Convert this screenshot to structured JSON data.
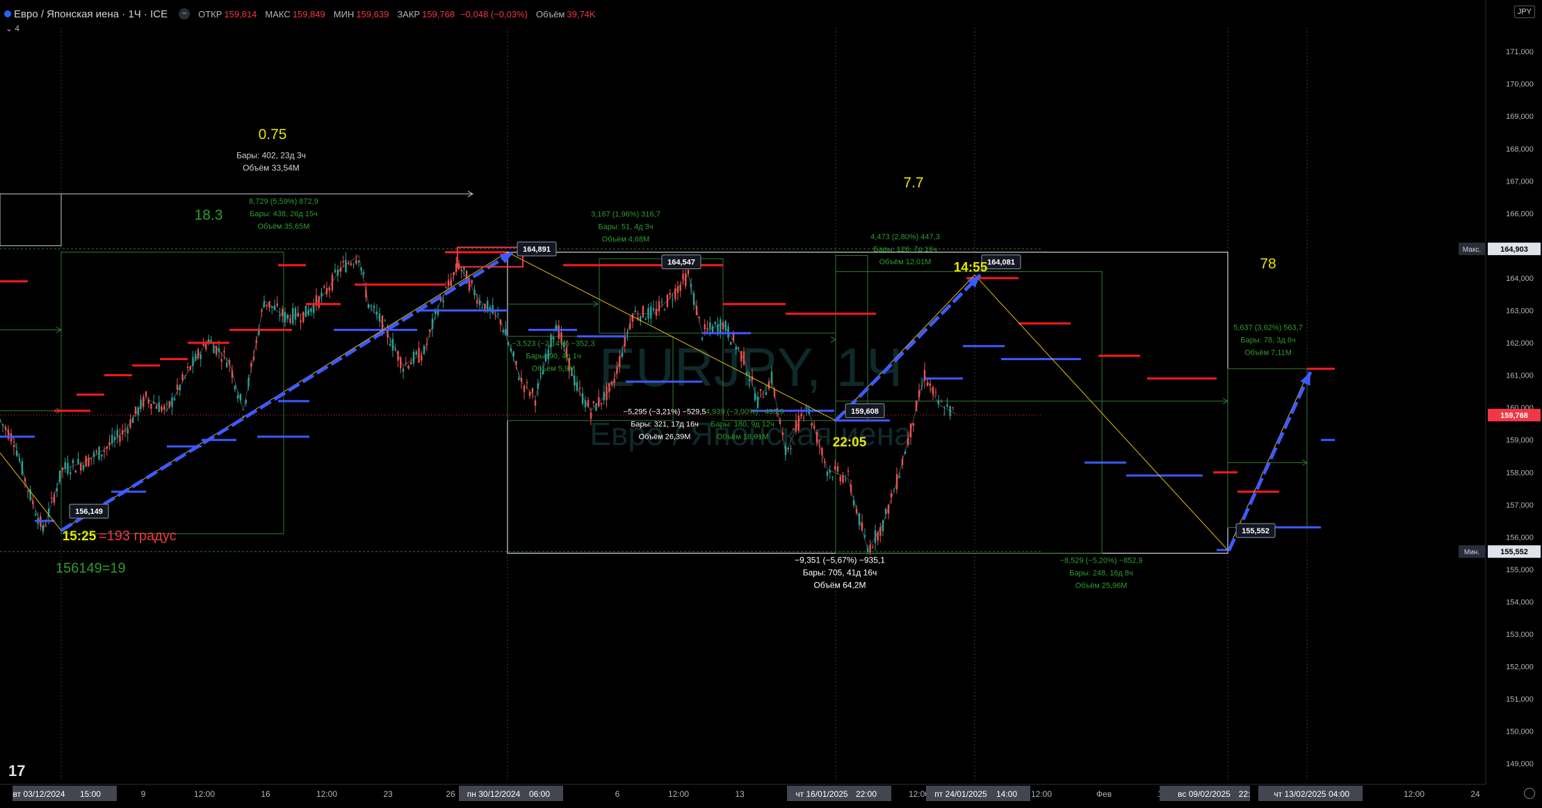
{
  "header": {
    "title": "Евро / Японская иена · 1Ч · ICE",
    "open_label": "ОТКР",
    "open": "159,814",
    "high_label": "МАКС",
    "high": "159,849",
    "low_label": "МИН",
    "low": "159,639",
    "close_label": "ЗАКР",
    "close": "159,768",
    "change": "−0,048 (−0,03%)",
    "volume_label": "Объём",
    "volume": "39,74K",
    "indicator_count": "4"
  },
  "currency": "JPY",
  "watermark": {
    "symbol": "EURJPY, 1Ч",
    "name": "Евро / Японская иена"
  },
  "colors": {
    "up": "#26a69a",
    "down": "#ef5350",
    "resistance": "#ff1a1a",
    "support": "#3d5afe",
    "trend_arrow": "#3d5afe",
    "zigzag": "#e6c200",
    "box": "#ffffff",
    "range": "#2e7d32",
    "note_yellow": "#e6e600",
    "note_green": "#2e9e2e",
    "note_red": "#f23645"
  },
  "chart_data": {
    "type": "line",
    "xlabel": "",
    "ylabel": "",
    "ylim": [
      148.5,
      171.5
    ],
    "x_ticks": [
      "9",
      "12:00",
      "16",
      "12:00",
      "23",
      "26",
      "6",
      "12:00",
      "13",
      "12:00",
      "12:00",
      "Фев",
      "12:00",
      "12:00",
      "24"
    ],
    "y_ticks": [
      "171,000",
      "170,000",
      "169,000",
      "168,000",
      "167,000",
      "166,000",
      "165,000",
      "164,000",
      "163,000",
      "162,000",
      "161,000",
      "160,000",
      "159,000",
      "158,000",
      "157,000",
      "156,000",
      "155,000",
      "154,000",
      "153,000",
      "152,000",
      "151,000",
      "150,000",
      "149,000"
    ],
    "time_labels": [
      "вт 03/12/2024",
      "15:00",
      "пн 30/12/2024",
      "06:00",
      "чт 16/01/2025",
      "22:00",
      "пт 24/01/2025",
      "14:00",
      "вс 09/02/2025",
      "22:",
      "чт 13/02/2025",
      "04:00"
    ],
    "series": [
      {
        "x": [
          0,
          20,
          40,
          62,
          90,
          120,
          150,
          180,
          210,
          240,
          270,
          300,
          330,
          350,
          380,
          410,
          440,
          470,
          490,
          516,
          530,
          550,
          580,
          610,
          630,
          660,
          690,
          720,
          750,
          770,
          800,
          830,
          850,
          880,
          910,
          940,
          960,
          990,
          1010,
          1040,
          1070,
          1090,
          1110,
          1130,
          1160,
          1190,
          1220,
          1248,
          1270,
          1290,
          1310,
          1330,
          1350,
          1375
        ],
        "values": [
          159.6,
          159.0,
          157.5,
          156.2,
          158.1,
          158.3,
          158.7,
          159.3,
          160.3,
          159.9,
          161.1,
          162.1,
          161.4,
          159.9,
          163.3,
          162.8,
          162.9,
          163.6,
          164.3,
          164.7,
          163.2,
          162.6,
          161.3,
          161.7,
          163.1,
          164.4,
          163.3,
          162.7,
          160.8,
          160.3,
          162.6,
          160.6,
          159.9,
          160.6,
          162.9,
          162.9,
          163.3,
          164.1,
          162.3,
          162.6,
          161.5,
          160.2,
          160.9,
          158.6,
          160.1,
          158.1,
          157.8,
          155.6,
          156.4,
          157.7,
          159.3,
          161.0,
          160.1,
          159.8
        ]
      }
    ],
    "current_price": "159,768",
    "high_level": {
      "label": "Макс.",
      "value": "164,903"
    },
    "low_level": {
      "label": "Мин.",
      "value": "155,552"
    },
    "price_labels": [
      "164,891",
      "164,547",
      "156,149",
      "159,608",
      "164,081",
      "155,552"
    ],
    "time_notes": [
      "15:25",
      "22:05",
      "14:55"
    ],
    "big_numbers": [
      "0.75",
      "18.3",
      "7.7",
      "78"
    ],
    "annotations": {
      "red_note": "=193 градус",
      "green_note": "156149=19",
      "range_top": [
        "Бары: 402, 23д 3ч",
        "Объём 33,54M"
      ],
      "range_a": [
        "8,729 (5,59%) 872,9",
        "Бары: 438, 26д 15ч",
        "Объём 35,65M"
      ],
      "range_b": [
        "3,167 (1,96%) 316,7",
        "Бары: 51, 4д 3ч",
        "Объём 4,68M"
      ],
      "range_c": [
        "−3,523 (−2,14%) −352,3",
        "Бары: 90, 4д 1ч",
        "Объём 5,9M"
      ],
      "range_d": [
        "−5,295 (−3,21%) −529,5",
        "Бары: 321, 17д 16ч",
        "Объём 26,39M"
      ],
      "range_e": [
        "−4,939 (−3,00%) −493,9",
        "Бары: 180, 9д 12ч",
        "Объём 16,01M"
      ],
      "range_f": [
        "4,473 (2,80%) 447,3",
        "Бары: 126, 7д 16ч",
        "Объём 12,01M"
      ],
      "range_g": [
        "−9,351 (−5,67%) −935,1",
        "Бары: 705, 41д 16ч",
        "Объём 64,2M"
      ],
      "range_h": [
        "−8,529 (−5,20%) −852,9",
        "Бары: 248, 16д 8ч",
        "Объём 25,96M"
      ],
      "range_i": [
        "5,637 (3,62%) 563,7",
        "Бары: 78, 3д 6ч",
        "Объём 7,11M"
      ]
    }
  }
}
